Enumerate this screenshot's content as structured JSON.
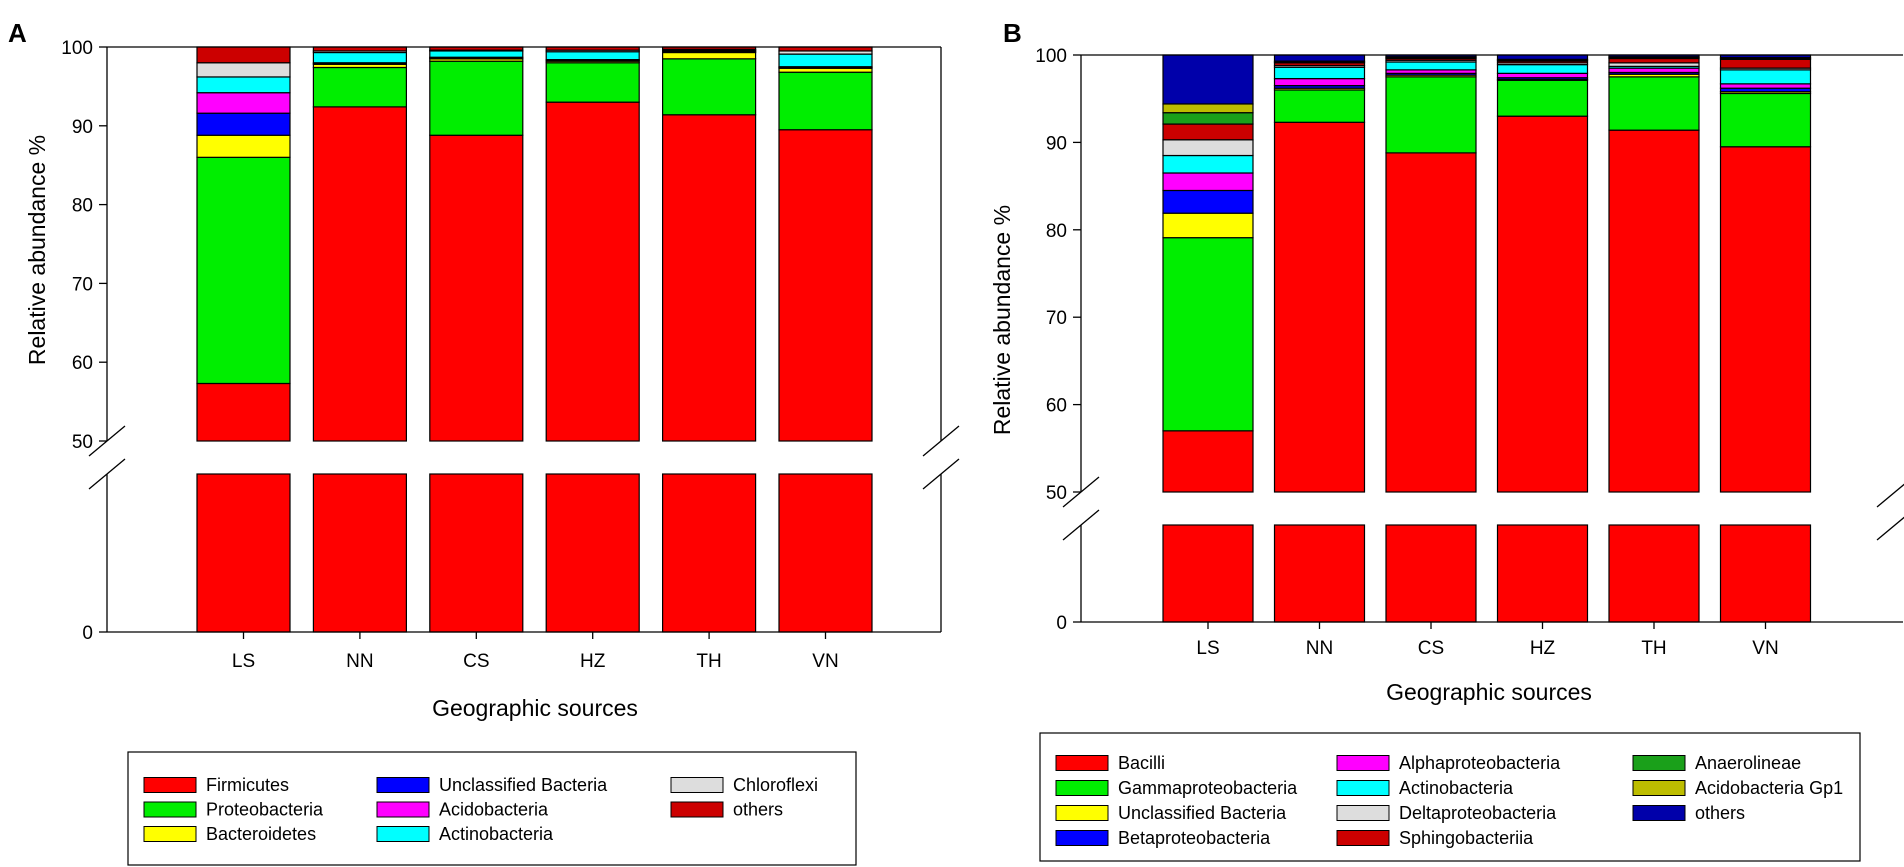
{
  "chart_data": [
    {
      "panel": "A",
      "type": "bar",
      "stacked": true,
      "xlabel": "Geographic sources",
      "ylabel": "Relative abundance %",
      "categories": [
        "LS",
        "NN",
        "CS",
        "HZ",
        "TH",
        "VN"
      ],
      "y_ticks": [
        "100",
        "90",
        "80",
        "70",
        "60",
        "50",
        "0"
      ],
      "ylim_upper": [
        50,
        100
      ],
      "ylim_lower": [
        0,
        50
      ],
      "axis_break": true,
      "series": [
        {
          "name": "Firmicutes",
          "color": "#ff0000",
          "values": [
            57.3,
            92.4,
            88.8,
            93.0,
            91.4,
            89.5
          ]
        },
        {
          "name": "Proteobacteria",
          "color": "#00ee00",
          "values": [
            28.7,
            5.0,
            9.4,
            5.0,
            7.1,
            7.3
          ]
        },
        {
          "name": "Bacteroidetes",
          "color": "#ffff00",
          "values": [
            2.8,
            0.4,
            0.3,
            0.2,
            0.8,
            0.5
          ]
        },
        {
          "name": "Unclassified Bacteria",
          "color": "#0000ff",
          "values": [
            2.8,
            0.1,
            0.1,
            0.1,
            0.1,
            0.1
          ]
        },
        {
          "name": "Acidobacteria",
          "color": "#ff00ff",
          "values": [
            2.6,
            0.1,
            0.1,
            0.1,
            0.1,
            0.1
          ]
        },
        {
          "name": "Actinobacteria",
          "color": "#00ffff",
          "values": [
            2.0,
            1.3,
            0.8,
            1.0,
            0.1,
            1.6
          ]
        },
        {
          "name": "Chloroflexi",
          "color": "#dddddd",
          "values": [
            1.8,
            0.2,
            0.1,
            0.2,
            0.1,
            0.4
          ]
        },
        {
          "name": "others",
          "color": "#cc0000",
          "values": [
            2.0,
            0.5,
            0.4,
            0.4,
            0.3,
            0.5
          ]
        }
      ],
      "legend": {
        "columns": [
          [
            "Firmicutes",
            "Proteobacteria",
            "Bacteroidetes"
          ],
          [
            "Unclassified Bacteria",
            "Acidobacteria",
            "Actinobacteria"
          ],
          [
            "Chloroflexi",
            "others"
          ]
        ],
        "placement": "bottom"
      }
    },
    {
      "panel": "B",
      "type": "bar",
      "stacked": true,
      "xlabel": "Geographic sources",
      "ylabel": "Relative abundance %",
      "categories": [
        "LS",
        "NN",
        "CS",
        "HZ",
        "TH",
        "VN"
      ],
      "y_ticks": [
        "100",
        "90",
        "80",
        "70",
        "60",
        "50",
        "0"
      ],
      "ylim_upper": [
        50,
        100
      ],
      "ylim_lower": [
        0,
        50
      ],
      "axis_break": true,
      "series": [
        {
          "name": "Bacilli",
          "color": "#ff0000",
          "values": [
            57.0,
            92.3,
            88.8,
            93.0,
            91.4,
            89.5
          ]
        },
        {
          "name": "Gammaproteobacteria",
          "color": "#00ee00",
          "values": [
            22.1,
            3.7,
            8.7,
            4.1,
            6.1,
            6.1
          ]
        },
        {
          "name": "Unclassified Bacteria",
          "color": "#ffff00",
          "values": [
            2.8,
            0.2,
            0.2,
            0.1,
            0.3,
            0.2
          ]
        },
        {
          "name": "Betaproteobacteria",
          "color": "#0000ff",
          "values": [
            2.6,
            0.3,
            0.2,
            0.2,
            0.2,
            0.4
          ]
        },
        {
          "name": "Alphaproteobacteria",
          "color": "#ff00ff",
          "values": [
            2.0,
            0.8,
            0.4,
            0.5,
            0.5,
            0.5
          ]
        },
        {
          "name": "Actinobacteria",
          "color": "#00ffff",
          "values": [
            2.0,
            1.3,
            0.9,
            1.0,
            0.2,
            1.6
          ]
        },
        {
          "name": "Deltaproteobacteria",
          "color": "#dddddd",
          "values": [
            1.8,
            0.2,
            0.2,
            0.2,
            0.4,
            0.2
          ]
        },
        {
          "name": "Sphingobacteriia",
          "color": "#cc0000",
          "values": [
            1.8,
            0.3,
            0.2,
            0.2,
            0.5,
            1.0
          ]
        },
        {
          "name": "Anaerolineae",
          "color": "#1aa01a",
          "values": [
            1.3,
            0.1,
            0.1,
            0.1,
            0.1,
            0.1
          ]
        },
        {
          "name": "Acidobacteria Gp1",
          "color": "#bdbd00",
          "values": [
            1.0,
            0.1,
            0.1,
            0.1,
            0.1,
            0.1
          ]
        },
        {
          "name": "others",
          "color": "#0000aa",
          "values": [
            5.6,
            0.7,
            0.2,
            0.5,
            0.2,
            0.3
          ]
        }
      ],
      "legend": {
        "columns": [
          [
            "Bacilli",
            "Gammaproteobacteria",
            "Unclassified Bacteria",
            "Betaproteobacteria"
          ],
          [
            "Alphaproteobacteria",
            "Actinobacteria",
            "Deltaproteobacteria",
            "Sphingobacteriia"
          ],
          [
            "Anaerolineae",
            "Acidobacteria Gp1",
            "others"
          ]
        ],
        "placement": "bottom"
      }
    }
  ]
}
